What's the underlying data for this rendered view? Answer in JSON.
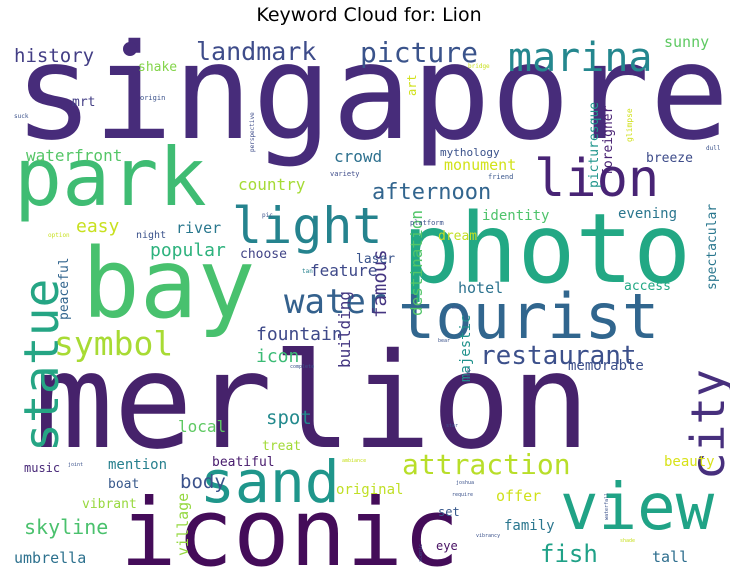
{
  "chart_data": {
    "type": "wordcloud",
    "title": "Keyword Cloud for: Lion",
    "words": [
      {
        "text": "singapore",
        "weight": 100,
        "color": "#472c7a"
      },
      {
        "text": "merlion",
        "weight": 99,
        "color": "#46226b"
      },
      {
        "text": "bay",
        "weight": 72,
        "color": "#48c16e"
      },
      {
        "text": "photo",
        "weight": 70,
        "color": "#22a884"
      },
      {
        "text": "iconic",
        "weight": 68,
        "color": "#440c59"
      },
      {
        "text": "park",
        "weight": 58,
        "color": "#3fbc73"
      },
      {
        "text": "view",
        "weight": 48,
        "color": "#20a386"
      },
      {
        "text": "tourist",
        "weight": 46,
        "color": "#31668e"
      },
      {
        "text": "sand",
        "weight": 40,
        "color": "#1f968b"
      },
      {
        "text": "light",
        "weight": 38,
        "color": "#25838e"
      },
      {
        "text": "lion",
        "weight": 37,
        "color": "#482475"
      },
      {
        "text": "statue",
        "weight": 34,
        "color": "#25a584"
      },
      {
        "text": "city",
        "weight": 33,
        "color": "#472f7d"
      },
      {
        "text": "marina",
        "weight": 30,
        "color": "#24878e"
      },
      {
        "text": "water",
        "weight": 24,
        "color": "#34618d"
      },
      {
        "text": "symbol",
        "weight": 24,
        "color": "#a8db34"
      },
      {
        "text": "attraction",
        "weight": 20,
        "color": "#b8de29"
      },
      {
        "text": "picture",
        "weight": 20,
        "color": "#3a538b"
      },
      {
        "text": "restaurant",
        "weight": 18,
        "color": "#3c508b"
      },
      {
        "text": "landmark",
        "weight": 18,
        "color": "#3e4c8a"
      },
      {
        "text": "afternoon",
        "weight": 16,
        "color": "#32658e"
      },
      {
        "text": "fish",
        "weight": 16,
        "color": "#1fa187"
      },
      {
        "text": "skyline",
        "weight": 14,
        "color": "#4ac16d"
      },
      {
        "text": "history",
        "weight": 13,
        "color": "#433e85"
      },
      {
        "text": "body",
        "weight": 13,
        "color": "#3b528b"
      },
      {
        "text": "fountain",
        "weight": 13,
        "color": "#3e4989"
      },
      {
        "text": "spot",
        "weight": 13,
        "color": "#238a8d"
      },
      {
        "text": "icon",
        "weight": 13,
        "color": "#3bbb75"
      },
      {
        "text": "famous",
        "weight": 13,
        "color": "#453581"
      },
      {
        "text": "easy",
        "weight": 12,
        "color": "#c8e020"
      },
      {
        "text": "popular",
        "weight": 12,
        "color": "#2db27d"
      },
      {
        "text": "country",
        "weight": 11,
        "color": "#a5db36"
      },
      {
        "text": "crowd",
        "weight": 11,
        "color": "#2d708e"
      },
      {
        "text": "feature",
        "weight": 11,
        "color": "#3e4989"
      },
      {
        "text": "river",
        "weight": 11,
        "color": "#2a788e"
      },
      {
        "text": "waterfront",
        "weight": 11,
        "color": "#55c667"
      },
      {
        "text": "umbrella",
        "weight": 11,
        "color": "#2d718e"
      },
      {
        "text": "destination",
        "weight": 11,
        "color": "#52c569"
      },
      {
        "text": "building",
        "weight": 11,
        "color": "#453882"
      },
      {
        "text": "sunny",
        "weight": 10,
        "color": "#5ec962"
      },
      {
        "text": "local",
        "weight": 10,
        "color": "#5ec962"
      },
      {
        "text": "hotel",
        "weight": 10,
        "color": "#2c728e"
      },
      {
        "text": "offer",
        "weight": 10,
        "color": "#d0e11c"
      },
      {
        "text": "tall",
        "weight": 10,
        "color": "#2e6e8e"
      },
      {
        "text": "village",
        "weight": 10,
        "color": "#95d840"
      },
      {
        "text": "monument",
        "weight": 10,
        "color": "#d2e21b"
      },
      {
        "text": "beauty",
        "weight": 10,
        "color": "#d8e219"
      },
      {
        "text": "memorable",
        "weight": 9,
        "color": "#3c4f8a"
      },
      {
        "text": "majestic",
        "weight": 9,
        "color": "#20928c"
      },
      {
        "text": "mention",
        "weight": 9,
        "color": "#27808e"
      },
      {
        "text": "original",
        "weight": 9,
        "color": "#c0df25"
      },
      {
        "text": "identity",
        "weight": 9,
        "color": "#4ec36b"
      },
      {
        "text": "family",
        "weight": 9,
        "color": "#2a768e"
      },
      {
        "text": "evening",
        "weight": 9,
        "color": "#2a768e"
      },
      {
        "text": "dream",
        "weight": 9,
        "color": "#c2df23"
      },
      {
        "text": "laser",
        "weight": 9,
        "color": "#3a548c"
      },
      {
        "text": "boat",
        "weight": 9,
        "color": "#38598c"
      },
      {
        "text": "vibrant",
        "weight": 9,
        "color": "#98d83e"
      },
      {
        "text": "shake",
        "weight": 9,
        "color": "#84d44b"
      },
      {
        "text": "mrt",
        "weight": 9,
        "color": "#433e85"
      },
      {
        "text": "peaceful",
        "weight": 9,
        "color": "#32658e"
      },
      {
        "text": "treat",
        "weight": 9,
        "color": "#a2da37"
      },
      {
        "text": "access",
        "weight": 9,
        "color": "#22a884"
      },
      {
        "text": "spectacular",
        "weight": 9,
        "color": "#2a778e"
      },
      {
        "text": "breeze",
        "weight": 9,
        "color": "#3e4c8a"
      },
      {
        "text": "picturesque",
        "weight": 9,
        "color": "#1f958b"
      },
      {
        "text": "foreigner",
        "weight": 9,
        "color": "#482173"
      },
      {
        "text": "choose",
        "weight": 9,
        "color": "#414487"
      },
      {
        "text": "beatiful",
        "weight": 9,
        "color": "#481b6d"
      },
      {
        "text": "music",
        "weight": 8,
        "color": "#482878"
      },
      {
        "text": "set",
        "weight": 8,
        "color": "#38598c"
      },
      {
        "text": "eye",
        "weight": 8,
        "color": "#471063"
      },
      {
        "text": "art",
        "weight": 8,
        "color": "#d0e11c"
      },
      {
        "text": "mythology",
        "weight": 6,
        "color": "#3b528b"
      },
      {
        "text": "night",
        "weight": 6,
        "color": "#3b528b"
      },
      {
        "text": "glimpse",
        "weight": 5,
        "color": "#d0e11c"
      },
      {
        "text": "perspective",
        "weight": 4,
        "color": "#3e4c8a"
      },
      {
        "text": "friend",
        "weight": 4,
        "color": "#39568c"
      },
      {
        "text": "variety",
        "weight": 4,
        "color": "#3e4c8a"
      },
      {
        "text": "origin",
        "weight": 4,
        "color": "#3b528b"
      },
      {
        "text": "suck",
        "weight": 4,
        "color": "#3b528b"
      },
      {
        "text": "dull",
        "weight": 4,
        "color": "#3b528b"
      },
      {
        "text": "platform",
        "weight": 4,
        "color": "#3b528b"
      },
      {
        "text": "pic",
        "weight": 4,
        "color": "#3b528b"
      },
      {
        "text": "option",
        "weight": 4,
        "color": "#c8e020"
      },
      {
        "text": "tan",
        "weight": 4,
        "color": "#26828e"
      },
      {
        "text": "bridge",
        "weight": 4,
        "color": "#c8e020"
      },
      {
        "text": "wan",
        "weight": 3,
        "color": "#3b528b"
      },
      {
        "text": "bear",
        "weight": 3,
        "color": "#3b528b"
      },
      {
        "text": "complete",
        "weight": 3,
        "color": "#3b528b"
      },
      {
        "text": "snap",
        "weight": 3,
        "color": "#3b528b"
      },
      {
        "text": "star",
        "weight": 3,
        "color": "#3b528b"
      },
      {
        "text": "joint",
        "weight": 3,
        "color": "#3b528b"
      },
      {
        "text": "ambiance",
        "weight": 3,
        "color": "#c8e020"
      },
      {
        "text": "joshua",
        "weight": 3,
        "color": "#3b528b"
      },
      {
        "text": "require",
        "weight": 3,
        "color": "#3b528b"
      },
      {
        "text": "waterfall",
        "weight": 3,
        "color": "#3b528b"
      },
      {
        "text": "scenic",
        "weight": 3,
        "color": "#3b528b"
      },
      {
        "text": "vibrancy",
        "weight": 3,
        "color": "#3b528b"
      },
      {
        "text": "shade",
        "weight": 3,
        "color": "#c8e020"
      }
    ]
  }
}
